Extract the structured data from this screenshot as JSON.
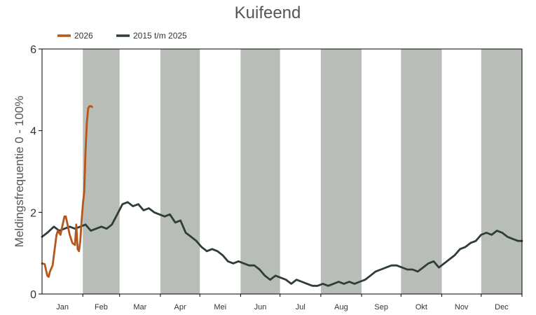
{
  "chart_data": {
    "type": "line",
    "title": "Kuifeend",
    "ylabel": "Meldingsfrequentie 0 - 100%",
    "xlabel": "",
    "ylim": [
      0,
      6
    ],
    "yticks": [
      0,
      2,
      4,
      6
    ],
    "months": [
      "Jan",
      "Feb",
      "Mar",
      "Apr",
      "Mei",
      "Jun",
      "Jul",
      "Aug",
      "Sep",
      "Okt",
      "Nov",
      "Dec"
    ],
    "shaded_months": [
      "Feb",
      "Apr",
      "Jun",
      "Aug",
      "Okt",
      "Dec"
    ],
    "colors": {
      "shade": "#b9bdb8",
      "series_2026": "#b5561c",
      "series_hist": "#2f3d37",
      "axis": "#000000"
    },
    "legend_position": "top-left",
    "series": [
      {
        "name": "2026",
        "color": "#b5561c",
        "x_day": [
          1,
          3,
          5,
          6,
          7,
          9,
          10,
          11,
          12,
          13,
          15,
          16,
          18,
          19,
          20,
          21,
          22,
          23,
          24,
          26,
          27,
          28,
          29,
          30,
          31,
          32,
          33,
          34,
          35,
          36,
          37,
          38,
          39
        ],
        "values": [
          0.75,
          0.73,
          0.45,
          0.42,
          0.55,
          0.7,
          0.95,
          1.2,
          1.45,
          1.55,
          1.45,
          1.6,
          1.9,
          1.9,
          1.75,
          1.6,
          1.45,
          1.35,
          1.25,
          1.2,
          1.7,
          1.1,
          1.05,
          1.3,
          1.8,
          2.2,
          2.5,
          3.5,
          4.2,
          4.55,
          4.6,
          4.6,
          4.58
        ]
      },
      {
        "name": "2015 t/m 2025",
        "color": "#2f3d37",
        "x_day": [
          1,
          5,
          10,
          14,
          18,
          22,
          26,
          30,
          34,
          38,
          42,
          46,
          50,
          54,
          58,
          62,
          66,
          70,
          74,
          78,
          82,
          86,
          90,
          94,
          98,
          102,
          106,
          110,
          114,
          118,
          122,
          126,
          130,
          134,
          138,
          142,
          146,
          150,
          154,
          158,
          162,
          166,
          170,
          174,
          178,
          182,
          186,
          190,
          194,
          198,
          202,
          206,
          210,
          214,
          218,
          222,
          226,
          230,
          234,
          238,
          242,
          246,
          250,
          254,
          258,
          262,
          266,
          270,
          274,
          278,
          282,
          286,
          290,
          294,
          298,
          302,
          306,
          310,
          314,
          318,
          322,
          326,
          330,
          334,
          338,
          342,
          346,
          350,
          354,
          358,
          362,
          365
        ],
        "values": [
          1.4,
          1.5,
          1.65,
          1.55,
          1.6,
          1.65,
          1.6,
          1.65,
          1.7,
          1.55,
          1.6,
          1.65,
          1.6,
          1.7,
          1.95,
          2.2,
          2.25,
          2.15,
          2.2,
          2.05,
          2.1,
          2.0,
          1.95,
          1.9,
          1.95,
          1.75,
          1.8,
          1.5,
          1.4,
          1.3,
          1.15,
          1.05,
          1.1,
          1.05,
          0.95,
          0.8,
          0.75,
          0.8,
          0.75,
          0.7,
          0.7,
          0.6,
          0.45,
          0.35,
          0.45,
          0.4,
          0.35,
          0.25,
          0.35,
          0.3,
          0.25,
          0.2,
          0.2,
          0.25,
          0.2,
          0.25,
          0.3,
          0.25,
          0.3,
          0.25,
          0.3,
          0.35,
          0.45,
          0.55,
          0.6,
          0.65,
          0.7,
          0.7,
          0.65,
          0.6,
          0.6,
          0.55,
          0.65,
          0.75,
          0.8,
          0.65,
          0.75,
          0.85,
          0.95,
          1.1,
          1.15,
          1.25,
          1.3,
          1.45,
          1.5,
          1.45,
          1.55,
          1.5,
          1.4,
          1.35,
          1.3,
          1.3
        ]
      }
    ]
  }
}
